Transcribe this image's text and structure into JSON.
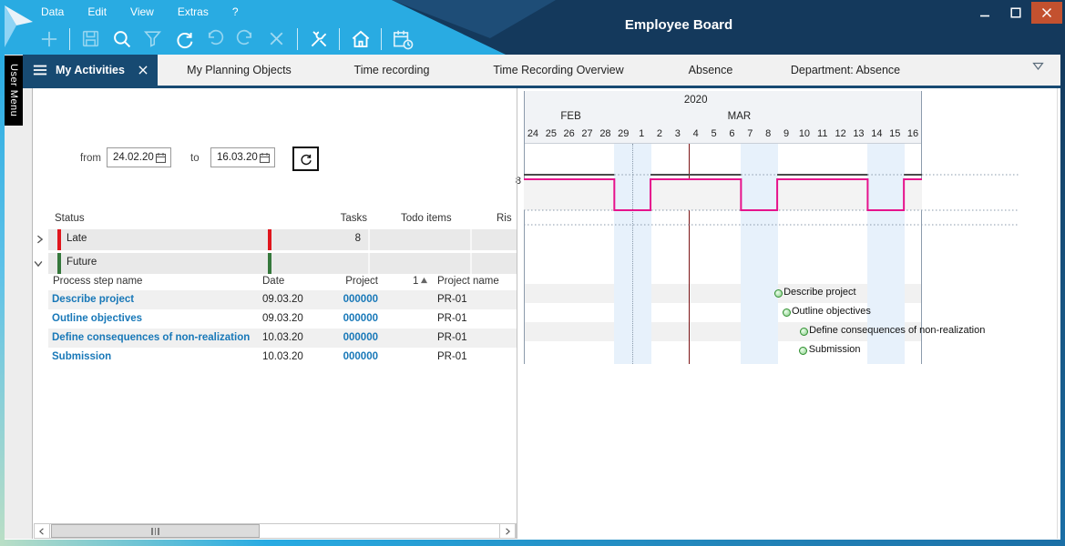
{
  "window": {
    "title": "Employee Board",
    "menu": [
      "Data",
      "Edit",
      "View",
      "Extras",
      "?"
    ],
    "controls": [
      "minimize",
      "maximize",
      "close"
    ]
  },
  "toolbar": {
    "icons": [
      {
        "name": "add",
        "enabled": false
      },
      {
        "name": "save",
        "enabled": false
      },
      {
        "name": "search",
        "enabled": true
      },
      {
        "name": "filter",
        "enabled": false
      },
      {
        "name": "refresh",
        "enabled": true
      },
      {
        "name": "undo",
        "enabled": false
      },
      {
        "name": "redo",
        "enabled": false
      },
      {
        "name": "delete",
        "enabled": false
      },
      {
        "name": "tools",
        "enabled": true
      },
      {
        "name": "home",
        "enabled": true
      },
      {
        "name": "planning-calendar",
        "enabled": true
      }
    ]
  },
  "side_rail": {
    "user_menu_label": "User Menu"
  },
  "tab_bar": {
    "active_tab": "My Activities",
    "tabs": [
      "My Planning Objects",
      "Time recording",
      "Time Recording Overview",
      "Absence",
      "Department: Absence"
    ]
  },
  "filter_bar": {
    "from_label": "from",
    "from_value": "24.02.20",
    "to_label": "to",
    "to_value": "16.03.20"
  },
  "summary_table": {
    "headers": [
      "Status",
      "Tasks",
      "Todo items",
      "Ris"
    ],
    "rows": [
      {
        "status": "Late",
        "tasks": "8",
        "todo_items": "",
        "risk": "",
        "state": "collapsed",
        "accent": "#e0161d"
      },
      {
        "status": "Future",
        "tasks": "",
        "todo_items": "",
        "risk": "",
        "state": "expanded",
        "accent": "#35783c"
      }
    ]
  },
  "detail_table": {
    "headers": [
      "Process step name",
      "Date",
      "Project",
      "Project name"
    ],
    "sort_badge": "1",
    "rows": [
      {
        "name": "Describe project",
        "date": "09.03.20",
        "project": "000000",
        "project_name": "PR-01"
      },
      {
        "name": "Outline objectives",
        "date": "09.03.20",
        "project": "000000",
        "project_name": "PR-01"
      },
      {
        "name": "Define consequences of non-realization",
        "date": "10.03.20",
        "project": "000000",
        "project_name": "PR-01"
      },
      {
        "name": "Submission",
        "date": "10.03.20",
        "project": "000000",
        "project_name": "PR-01"
      }
    ]
  },
  "colors": {
    "accent_cyan": "#29abe2",
    "navy": "#14395c",
    "active_tab": "#174a72",
    "close_button": "#c3512f",
    "late_red": "#e0161d",
    "future_green": "#35783c",
    "link_blue": "#1878b8",
    "workload_pink": "#e6138c",
    "today_line": "#7d1517",
    "weekend_band": "#e7f1fb"
  },
  "chart_data": {
    "type": "gantt-timeline",
    "year": "2020",
    "year_center_day": 9.5,
    "months": [
      {
        "label": "FEB",
        "center_day": 2.6
      },
      {
        "label": "MAR",
        "center_day": 11.9
      }
    ],
    "days": [
      "24",
      "25",
      "26",
      "27",
      "28",
      "29",
      "1",
      "2",
      "3",
      "4",
      "5",
      "6",
      "7",
      "8",
      "9",
      "10",
      "11",
      "12",
      "13",
      "14",
      "15",
      "16"
    ],
    "weekend_day_indices": [
      5,
      6,
      12,
      13,
      19,
      20
    ],
    "month_boundary_index": 6,
    "today_offset_days": 9.1,
    "capacity": {
      "label": "8",
      "value": 8
    },
    "workload_series": {
      "name": "Workload",
      "high_value": 8,
      "low_value": 0,
      "high_segments": [
        [
          0,
          5
        ],
        [
          7,
          12
        ],
        [
          14,
          19
        ],
        [
          21,
          22
        ]
      ],
      "color": "#e6138c"
    },
    "milestones": [
      {
        "label": "Describe project",
        "date": "09.03.20",
        "day_offset": 14.05
      },
      {
        "label": "Outline objectives",
        "date": "09.03.20",
        "day_offset": 14.5
      },
      {
        "label": "Define consequences of non-realization",
        "date": "10.03.20",
        "day_offset": 15.46
      },
      {
        "label": "Submission",
        "date": "10.03.20",
        "day_offset": 15.44
      }
    ]
  }
}
